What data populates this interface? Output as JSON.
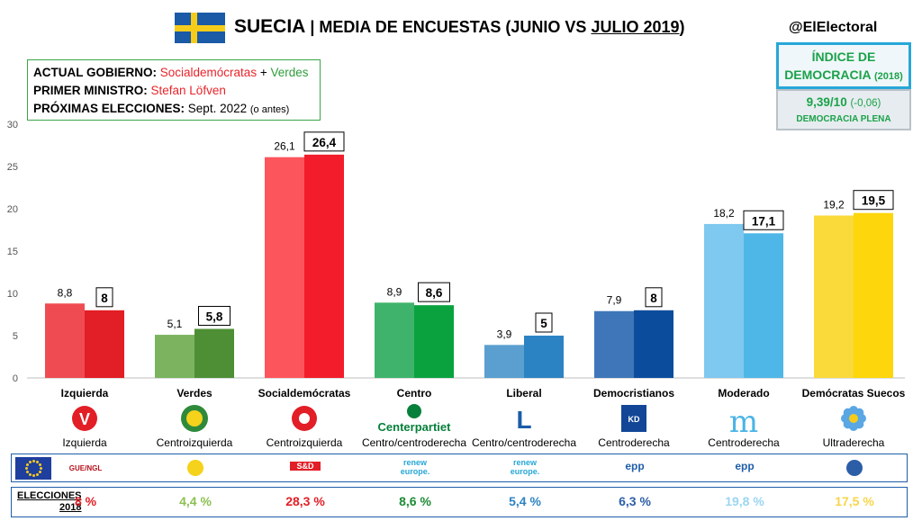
{
  "header": {
    "country": "SUECIA",
    "separator": " | ",
    "subtitle_prefix": "MEDIA DE ENCUESTAS (JUNIO VS ",
    "subtitle_underlined": "JULIO 2019",
    "subtitle_suffix": ")",
    "handle": "@ElElectoral"
  },
  "info": {
    "gov_label": "ACTUAL GOBIERNO:",
    "gov_party1": "Socialdemócratas",
    "gov_plus": " + ",
    "gov_party2": "Verdes",
    "pm_label": "PRIMER MINISTRO:",
    "pm_name": "Stefan Löfven",
    "elections_label": "PRÓXIMAS ELECCIONES:",
    "elections_date": "Sept. 2022",
    "elections_note": "(o antes)"
  },
  "democracy": {
    "title_line1": "ÍNDICE DE",
    "title_line2": "DEMOCRACIA",
    "year": "(2018)",
    "score": "9,39/10",
    "change": "(-0,06)",
    "category": "DEMOCRACIA PLENA"
  },
  "chart_data": {
    "type": "bar",
    "ylim": [
      0,
      30
    ],
    "yticks": [
      0,
      5,
      10,
      15,
      20,
      25,
      30
    ],
    "grid": false,
    "categories": [
      "Izquierda",
      "Verdes",
      "Socialdemócratas",
      "Centro",
      "Liberal",
      "Democristianos",
      "Moderado",
      "Demócratas Suecos"
    ],
    "ideology": [
      "Izquierda",
      "Centroizquierda",
      "Centroizquierda",
      "Centro/centroderecha",
      "Centro/centroderecha",
      "Centroderecha",
      "Centroderecha",
      "Ultraderecha"
    ],
    "series": [
      {
        "values": [
          8.8,
          5.1,
          26.1,
          8.9,
          3.9,
          7.9,
          18.2,
          19.2
        ],
        "labels": [
          "8,8",
          "5,1",
          "26,1",
          "8,9",
          "3,9",
          "7,9",
          "18,2",
          "19,2"
        ]
      },
      {
        "values": [
          8,
          5.8,
          26.4,
          8.6,
          5,
          8,
          17.1,
          19.5
        ],
        "labels": [
          "8",
          "5,8",
          "26,4",
          "8,6",
          "5",
          "8",
          "17,1",
          "19,5"
        ]
      }
    ],
    "colors_old": [
      "#ee4c52",
      "#7bb35f",
      "#fd555c",
      "#3fb36b",
      "#5a9fd0",
      "#3e76b9",
      "#7fc8ef",
      "#fad93a"
    ],
    "colors_new": [
      "#e21e26",
      "#4e8f35",
      "#f21c2a",
      "#09a23f",
      "#2c83c3",
      "#0b4d9c",
      "#4fb7e8",
      "#fdd60b"
    ]
  },
  "logos": [
    {
      "icon": "red-v-icon",
      "color": "#e21e26",
      "text": "V"
    },
    {
      "icon": "sun-flower-icon",
      "color": "#f5d21b",
      "text": ""
    },
    {
      "icon": "red-rose-icon",
      "color": "#e21e26",
      "text": ""
    },
    {
      "icon": "clover-icon",
      "color": "#06803a",
      "text": "Centerpartiet"
    },
    {
      "icon": "l-letter-icon",
      "color": "#1a5ca8",
      "text": "L"
    },
    {
      "icon": "kd-square-icon",
      "color": "#134696",
      "text": "KD"
    },
    {
      "icon": "m-letter-icon",
      "color": "#4bb4e6",
      "text": "m"
    },
    {
      "icon": "blue-flower-icon",
      "color": "#5aa7e4",
      "text": ""
    }
  ],
  "eu_groups": [
    "GUE/NGL",
    "",
    "S&D",
    "renew europe.",
    "renew europe.",
    "epp",
    "epp",
    ""
  ],
  "elections_2018": {
    "label_line1": "ELECCIONES",
    "label_line2": "2018",
    "values": [
      "8 %",
      "4,4 %",
      "28,3 %",
      "8,6 %",
      "5,4 %",
      "6,3 %",
      "19,8 %",
      "17,5 %"
    ],
    "colors": [
      "#e21e26",
      "#8cc152",
      "#e21e26",
      "#1d8a35",
      "#2c83c3",
      "#2c5ea8",
      "#9ad6f2",
      "#f7d54a"
    ]
  }
}
